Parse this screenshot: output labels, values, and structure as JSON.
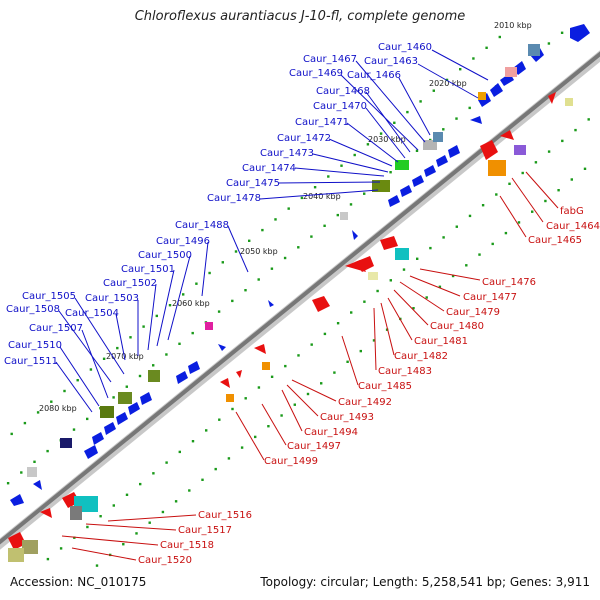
{
  "title": "Chloroflexus aurantiacus J-10-fl, complete genome",
  "footer": {
    "accession": "Accession: NC_010175",
    "info": "Topology: circular; Length: 5,258,541 bp; Genes: 3,911"
  },
  "ticks": [
    "2010 kbp",
    "2020 kbp",
    "2030 kbp",
    "2040 kbp",
    "2050 kbp",
    "2060 kbp",
    "2070 kbp",
    "2080 kbp"
  ],
  "forward_labels": [
    "Caur_1460",
    "Caur_1463",
    "Caur_1466",
    "Caur_1467",
    "Caur_1469",
    "Caur_1468",
    "Caur_1470",
    "Caur_1471",
    "Caur_1472",
    "Caur_1473",
    "Caur_1474",
    "Caur_1475",
    "Caur_1478",
    "Caur_1488",
    "Caur_1496",
    "Caur_1500",
    "Caur_1501",
    "Caur_1502",
    "Caur_1503",
    "Caur_1504",
    "Caur_1505",
    "Caur_1508",
    "Caur_1507",
    "Caur_1510",
    "Caur_1511"
  ],
  "reverse_labels": [
    "fabG",
    "Caur_1464",
    "Caur_1465",
    "Caur_1476",
    "Caur_1477",
    "Caur_1479",
    "Caur_1480",
    "Caur_1481",
    "Caur_1482",
    "Caur_1483",
    "Caur_1485",
    "Caur_1492",
    "Caur_1493",
    "Caur_1494",
    "Caur_1497",
    "Caur_1499",
    "Caur_1516",
    "Caur_1517",
    "Caur_1518",
    "Caur_1520"
  ],
  "colors": {
    "forward": "#0a1ee0",
    "reverse": "#e81010",
    "forward_text": "#1010c8",
    "reverse_text": "#c81010",
    "backbone": "#8a8a8a",
    "dots": "#1a9a1a"
  }
}
